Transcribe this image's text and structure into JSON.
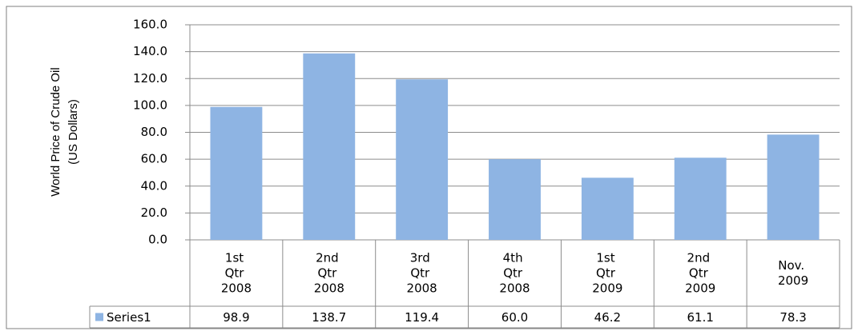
{
  "chart_data": {
    "type": "bar",
    "y_label": [
      "World Price of Crude Oil",
      "(US Dollars)"
    ],
    "categories": [
      "1st Qtr 2008",
      "2nd Qtr 2008",
      "3rd Qtr 2008",
      "4th Qtr 2008",
      "1st Qtr 2009",
      "2nd Qtr 2009",
      "Nov. 2009"
    ],
    "series": [
      {
        "name": "Series1",
        "color": "#8eb4e3",
        "values": [
          98.9,
          138.7,
          119.4,
          60.0,
          46.2,
          61.1,
          78.3
        ],
        "value_labels": [
          "98.9",
          "138.7",
          "119.4",
          "60.0",
          "46.2",
          "61.1",
          "78.3"
        ]
      }
    ],
    "ylim": [
      0,
      160
    ],
    "yticks": [
      {
        "value": 0,
        "label": "0.0"
      },
      {
        "value": 20,
        "label": "20.0"
      },
      {
        "value": 40,
        "label": "40.0"
      },
      {
        "value": 60,
        "label": "60.0"
      },
      {
        "value": 80,
        "label": "80.0"
      },
      {
        "value": 100,
        "label": "100.0"
      },
      {
        "value": 120,
        "label": "120.0"
      },
      {
        "value": 140,
        "label": "140.0"
      },
      {
        "value": 160,
        "label": "160.0"
      }
    ],
    "grid": true
  }
}
